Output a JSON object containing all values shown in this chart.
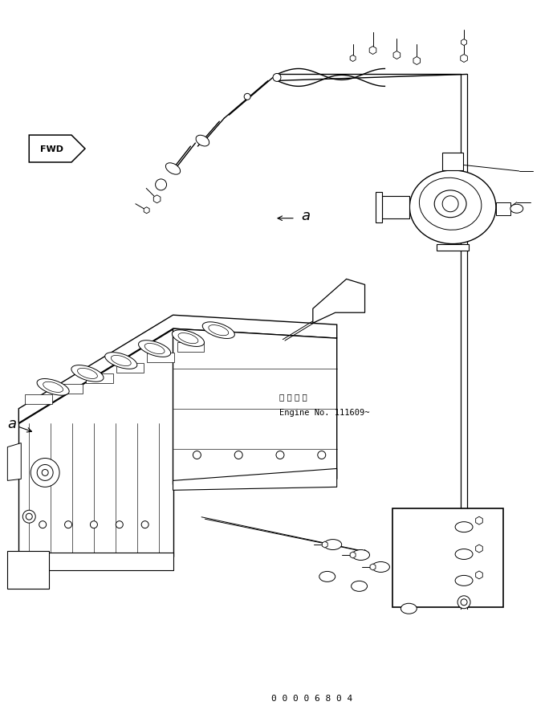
{
  "bg_color": "#ffffff",
  "line_color": "#000000",
  "fig_width": 6.89,
  "fig_height": 8.95,
  "dpi": 100,
  "part_number": "0 0 0 0 6 8 0 4",
  "engine_note_jp": "適 用 号 機",
  "engine_note_en": "Engine No. 111609~",
  "label_a": "a",
  "label_fwd": "FWD"
}
